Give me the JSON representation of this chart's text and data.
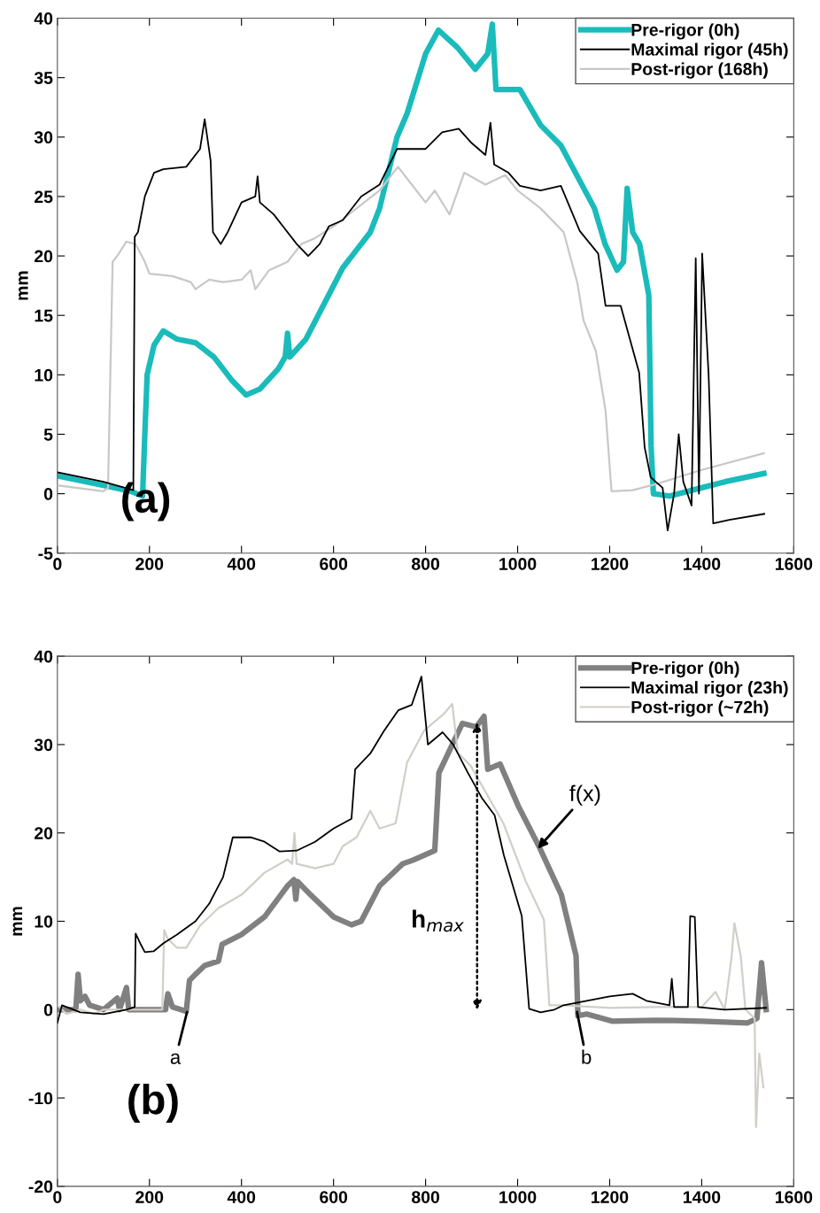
{
  "chart_data": [
    {
      "type": "line",
      "ylabel": "mm",
      "xlim": [
        0,
        1600
      ],
      "ylim": [
        -5,
        40
      ],
      "xticks": [
        0,
        200,
        400,
        600,
        800,
        1000,
        1200,
        1400,
        1600
      ],
      "yticks": [
        -5,
        0,
        5,
        10,
        15,
        20,
        25,
        30,
        35,
        40
      ],
      "grid": false,
      "legend": "top right",
      "annotations": [
        "(a)"
      ],
      "series": [
        {
          "name": "Pre-rigor (0h)",
          "color": "#1abbbb",
          "x": [
            0,
            100,
            160,
            185,
            190,
            195,
            210,
            230,
            260,
            300,
            340,
            380,
            410,
            440,
            480,
            495,
            500,
            505,
            540,
            580,
            620,
            650,
            680,
            700,
            738,
            760,
            800,
            828,
            870,
            908,
            935,
            945,
            953,
            1005,
            1050,
            1094,
            1167,
            1190,
            1216,
            1230,
            1238,
            1250,
            1265,
            1285,
            1290,
            1295,
            1330,
            1400,
            1450,
            1535
          ],
          "values": [
            1.5,
            0.7,
            0.2,
            -0.2,
            5,
            10,
            12.5,
            13.7,
            13,
            12.7,
            11.5,
            9.5,
            8.3,
            8.8,
            10.5,
            11.5,
            13.5,
            11.5,
            13,
            16,
            19,
            20.5,
            22,
            24,
            30,
            32,
            37,
            39,
            37.5,
            35.7,
            37,
            39.5,
            34,
            34,
            31,
            29.3,
            24,
            21,
            18.8,
            19.5,
            25.7,
            22,
            21,
            16.7,
            4,
            0,
            -0.2,
            0.5,
            1,
            1.7
          ]
        },
        {
          "name": "Maximal rigor (45h)",
          "color": "#000000",
          "x": [
            0,
            100,
            165,
            168,
            175,
            190,
            210,
            230,
            280,
            310,
            320,
            333,
            338,
            355,
            370,
            400,
            430,
            435,
            440,
            470,
            490,
            520,
            545,
            570,
            590,
            620,
            660,
            700,
            738,
            760,
            800,
            836,
            872,
            900,
            930,
            941,
            949,
            980,
            1005,
            1050,
            1094,
            1135,
            1175,
            1191,
            1224,
            1264,
            1276,
            1289,
            1300,
            1315,
            1326,
            1340,
            1350,
            1360,
            1378,
            1387,
            1394,
            1401,
            1415,
            1425,
            1460,
            1536
          ],
          "values": [
            1.8,
            1,
            0.3,
            21.6,
            22,
            25,
            27,
            27.3,
            27.5,
            29,
            31.5,
            28,
            22,
            21,
            22,
            24.5,
            25,
            26.7,
            24.5,
            23.5,
            22.5,
            21,
            20,
            21,
            22.5,
            23,
            25,
            26,
            29,
            29,
            29,
            30.4,
            30.7,
            29.5,
            28.5,
            31.2,
            27.7,
            27,
            25.9,
            25.5,
            25.9,
            22.1,
            20.2,
            15.8,
            15.8,
            10.2,
            3.9,
            1.4,
            1,
            0.5,
            -3.1,
            0,
            5,
            1,
            -1,
            19.8,
            0,
            20.2,
            10,
            -2.5,
            -2.2,
            -1.7
          ]
        },
        {
          "name": "Post-rigor (168h)",
          "color": "#c8c8c8",
          "x": [
            0,
            100,
            110,
            115,
            120,
            130,
            150,
            170,
            190,
            200,
            250,
            290,
            300,
            330,
            360,
            400,
            420,
            430,
            460,
            500,
            530,
            560,
            600,
            650,
            700,
            740,
            770,
            800,
            820,
            852,
            884,
            930,
            973,
            1000,
            1050,
            1100,
            1130,
            1143,
            1170,
            1191,
            1204,
            1250,
            1300,
            1400,
            1535
          ],
          "values": [
            0.7,
            0.2,
            0.5,
            10,
            19.5,
            20,
            21.2,
            21,
            19.5,
            18.5,
            18.3,
            17.8,
            17.2,
            18,
            17.8,
            18,
            18.8,
            17.2,
            18.8,
            19.5,
            21,
            21.5,
            22.5,
            24,
            25.5,
            27.5,
            26,
            24.5,
            25.5,
            23.5,
            27,
            26,
            26.8,
            25.5,
            24,
            22,
            17.7,
            14.6,
            12,
            7,
            0.2,
            0.3,
            0.8,
            2,
            3.4
          ]
        }
      ]
    },
    {
      "type": "line",
      "ylabel": "mm",
      "xlim": [
        0,
        1600
      ],
      "ylim": [
        -20,
        40
      ],
      "xticks": [
        0,
        200,
        400,
        600,
        800,
        1000,
        1200,
        1400,
        1600
      ],
      "yticks": [
        -20,
        -10,
        0,
        10,
        20,
        30,
        40
      ],
      "grid": false,
      "legend": "top right",
      "annotations": [
        "(b)",
        {
          "text": "a",
          "x": 283,
          "y": 0
        },
        {
          "text": "b",
          "x": 1128,
          "y": 0
        },
        {
          "text": "f(x)",
          "x": 1040,
          "y": 18
        },
        "h$_{max}$"
      ],
      "series": [
        {
          "name": "Pre-rigor (0h)",
          "color": "#808080",
          "x": [
            0,
            40,
            45,
            50,
            60,
            70,
            100,
            130,
            135,
            150,
            155,
            235,
            240,
            250,
            280,
            287,
            300,
            320,
            350,
            358,
            400,
            450,
            500,
            514,
            518,
            522,
            550,
            600,
            639,
            660,
            700,
            750,
            772,
            820,
            829,
            880,
            910,
            927,
            935,
            962,
            1001,
            1048,
            1095,
            1127,
            1131,
            1150,
            1205,
            1300,
            1400,
            1500,
            1520,
            1530,
            1540
          ],
          "values": [
            0,
            0,
            4,
            1,
            1.5,
            0.5,
            0,
            1.3,
            0,
            2.5,
            0,
            0,
            1.8,
            0.3,
            -0.2,
            3.3,
            4,
            5,
            5.5,
            7.4,
            8.5,
            10.5,
            14,
            14.7,
            12.5,
            14.5,
            13,
            10.5,
            9.6,
            10,
            14,
            16.5,
            16.9,
            18,
            26.8,
            32.4,
            32,
            33.2,
            27.2,
            27.8,
            23.1,
            18.3,
            13,
            6.1,
            -0.7,
            -0.5,
            -1.3,
            -1.2,
            -1.3,
            -1.5,
            -1,
            5.3,
            0
          ]
        },
        {
          "name": "Maximal rigor (23h)",
          "color": "#000000",
          "x": [
            0,
            10,
            50,
            100,
            150,
            168,
            170,
            180,
            190,
            209,
            230,
            260,
            300,
            330,
            360,
            381,
            420,
            450,
            483,
            520,
            560,
            600,
            639,
            647,
            680,
            709,
            741,
            770,
            791,
            805,
            837,
            860,
            892,
            923,
            950,
            970,
            1009,
            1025,
            1050,
            1080,
            1100,
            1150,
            1200,
            1250,
            1280,
            1330,
            1335,
            1340,
            1370,
            1375,
            1385,
            1392,
            1450,
            1540
          ],
          "values": [
            -1.5,
            0.5,
            -0.3,
            -0.5,
            0,
            0.3,
            8.6,
            7.5,
            6.5,
            6.6,
            7.5,
            8.5,
            10,
            12,
            15,
            19.5,
            19.5,
            19,
            17.9,
            18,
            19,
            20.5,
            21.6,
            27.2,
            29,
            31.5,
            33.9,
            34.5,
            37.7,
            30,
            31.4,
            30,
            26.8,
            23.9,
            22,
            17.5,
            10.6,
            0.1,
            -0.3,
            0,
            0.5,
            1,
            1.5,
            1.8,
            1,
            0.5,
            3.5,
            0.3,
            0.3,
            10.6,
            10.5,
            0.3,
            0,
            0.2
          ]
        },
        {
          "name": "Post-rigor (~72h)",
          "color": "#d2cec8",
          "x": [
            0,
            20,
            50,
            80,
            100,
            200,
            228,
            232,
            240,
            260,
            280,
            310,
            350,
            400,
            450,
            500,
            510,
            515,
            520,
            560,
            600,
            620,
            650,
            680,
            700,
            730,
            735,
            760,
            797,
            840,
            858,
            870,
            898,
            969,
            1017,
            1057,
            1069,
            1100,
            1200,
            1300,
            1400,
            1430,
            1450,
            1465,
            1471,
            1485,
            1495,
            1515,
            1518,
            1525,
            1534
          ],
          "values": [
            0.5,
            -0.5,
            0,
            -0.5,
            0,
            0,
            0,
            9,
            8,
            7,
            7,
            9.5,
            11.5,
            13,
            15.5,
            17,
            16.5,
            20,
            16.5,
            16,
            16.5,
            18.5,
            19.5,
            22.5,
            20.5,
            21,
            21.1,
            28,
            31.6,
            33.5,
            34.6,
            29.1,
            27.6,
            21.1,
            14.6,
            10.2,
            0.5,
            0.5,
            0.2,
            0.3,
            0.3,
            2,
            0,
            6,
            9.8,
            6,
            0,
            -1,
            -13.3,
            -5,
            -8.8
          ]
        }
      ]
    }
  ]
}
